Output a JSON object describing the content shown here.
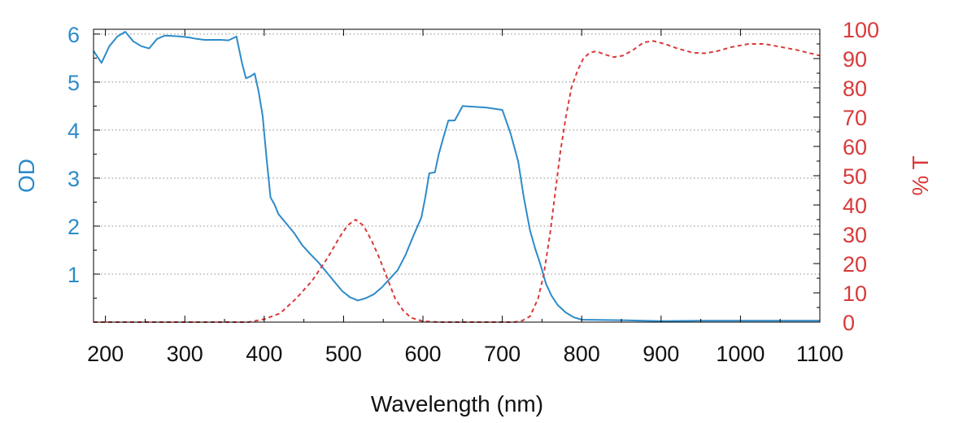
{
  "chart_data": {
    "type": "line",
    "title": "",
    "xlabel": "Wavelength (nm)",
    "ylabel_left": "OD",
    "ylabel_right": "% T",
    "xlim": [
      185,
      1100
    ],
    "ylim_left": [
      0,
      6.1
    ],
    "ylim_right": [
      0,
      100
    ],
    "x_ticks": [
      "200",
      "300",
      "400",
      "500",
      "600",
      "700",
      "800",
      "900",
      "1000",
      "1100"
    ],
    "y_left_ticks": [
      "1",
      "2",
      "3",
      "4",
      "5",
      "6"
    ],
    "y_right_ticks": [
      "0",
      "10",
      "20",
      "30",
      "40",
      "50",
      "60",
      "70",
      "80",
      "90",
      "100"
    ],
    "grid": "horizontal dotted",
    "colors": {
      "od": "#2e8bc9",
      "transmission": "#d93a3a",
      "grid": "#888888",
      "frame": "#000000"
    },
    "series": [
      {
        "name": "OD",
        "axis": "left",
        "style": "solid",
        "points": [
          [
            185,
            5.65
          ],
          [
            195,
            5.4
          ],
          [
            205,
            5.75
          ],
          [
            215,
            5.95
          ],
          [
            225,
            6.05
          ],
          [
            235,
            5.85
          ],
          [
            245,
            5.75
          ],
          [
            255,
            5.7
          ],
          [
            265,
            5.9
          ],
          [
            275,
            5.97
          ],
          [
            285,
            5.96
          ],
          [
            295,
            5.95
          ],
          [
            305,
            5.93
          ],
          [
            315,
            5.9
          ],
          [
            325,
            5.88
          ],
          [
            345,
            5.88
          ],
          [
            355,
            5.87
          ],
          [
            365,
            5.95
          ],
          [
            372,
            5.4
          ],
          [
            377,
            5.08
          ],
          [
            383,
            5.12
          ],
          [
            388,
            5.18
          ],
          [
            393,
            4.8
          ],
          [
            398,
            4.3
          ],
          [
            403,
            3.4
          ],
          [
            408,
            2.6
          ],
          [
            413,
            2.45
          ],
          [
            418,
            2.25
          ],
          [
            428,
            2.05
          ],
          [
            438,
            1.85
          ],
          [
            448,
            1.6
          ],
          [
            458,
            1.42
          ],
          [
            468,
            1.25
          ],
          [
            478,
            1.05
          ],
          [
            488,
            0.85
          ],
          [
            498,
            0.65
          ],
          [
            508,
            0.52
          ],
          [
            518,
            0.45
          ],
          [
            528,
            0.5
          ],
          [
            538,
            0.58
          ],
          [
            548,
            0.72
          ],
          [
            558,
            0.9
          ],
          [
            568,
            1.08
          ],
          [
            578,
            1.4
          ],
          [
            588,
            1.8
          ],
          [
            598,
            2.18
          ],
          [
            603,
            2.6
          ],
          [
            608,
            3.1
          ],
          [
            615,
            3.12
          ],
          [
            620,
            3.5
          ],
          [
            625,
            3.8
          ],
          [
            632,
            4.2
          ],
          [
            640,
            4.2
          ],
          [
            645,
            4.35
          ],
          [
            650,
            4.5
          ],
          [
            680,
            4.47
          ],
          [
            700,
            4.42
          ],
          [
            710,
            3.95
          ],
          [
            720,
            3.35
          ],
          [
            727,
            2.6
          ],
          [
            735,
            1.9
          ],
          [
            742,
            1.5
          ],
          [
            748,
            1.2
          ],
          [
            755,
            0.8
          ],
          [
            762,
            0.55
          ],
          [
            770,
            0.35
          ],
          [
            780,
            0.2
          ],
          [
            790,
            0.1
          ],
          [
            800,
            0.05
          ],
          [
            850,
            0.04
          ],
          [
            900,
            0.02
          ],
          [
            950,
            0.03
          ],
          [
            1000,
            0.03
          ],
          [
            1050,
            0.03
          ],
          [
            1100,
            0.03
          ]
        ]
      },
      {
        "name": "% T",
        "axis": "right",
        "style": "dashed",
        "points": [
          [
            185,
            0
          ],
          [
            380,
            0
          ],
          [
            400,
            1
          ],
          [
            420,
            3
          ],
          [
            440,
            8
          ],
          [
            460,
            14
          ],
          [
            480,
            22
          ],
          [
            495,
            29
          ],
          [
            505,
            33
          ],
          [
            515,
            35
          ],
          [
            525,
            33
          ],
          [
            535,
            28
          ],
          [
            545,
            22
          ],
          [
            555,
            15
          ],
          [
            565,
            8
          ],
          [
            575,
            4
          ],
          [
            585,
            1.5
          ],
          [
            600,
            0.3
          ],
          [
            620,
            0
          ],
          [
            715,
            0
          ],
          [
            725,
            0.5
          ],
          [
            735,
            2
          ],
          [
            745,
            8
          ],
          [
            752,
            16
          ],
          [
            760,
            30
          ],
          [
            767,
            45
          ],
          [
            773,
            58
          ],
          [
            780,
            70
          ],
          [
            787,
            80
          ],
          [
            795,
            86
          ],
          [
            802,
            90
          ],
          [
            810,
            92
          ],
          [
            818,
            92.5
          ],
          [
            828,
            91.5
          ],
          [
            840,
            90.5
          ],
          [
            852,
            91
          ],
          [
            865,
            93
          ],
          [
            878,
            95.5
          ],
          [
            890,
            96
          ],
          [
            905,
            95
          ],
          [
            920,
            93.5
          ],
          [
            940,
            92
          ],
          [
            955,
            91.8
          ],
          [
            970,
            92.5
          ],
          [
            990,
            94
          ],
          [
            1010,
            95
          ],
          [
            1030,
            95
          ],
          [
            1050,
            94
          ],
          [
            1070,
            93
          ],
          [
            1085,
            92
          ],
          [
            1100,
            91
          ]
        ]
      }
    ]
  }
}
